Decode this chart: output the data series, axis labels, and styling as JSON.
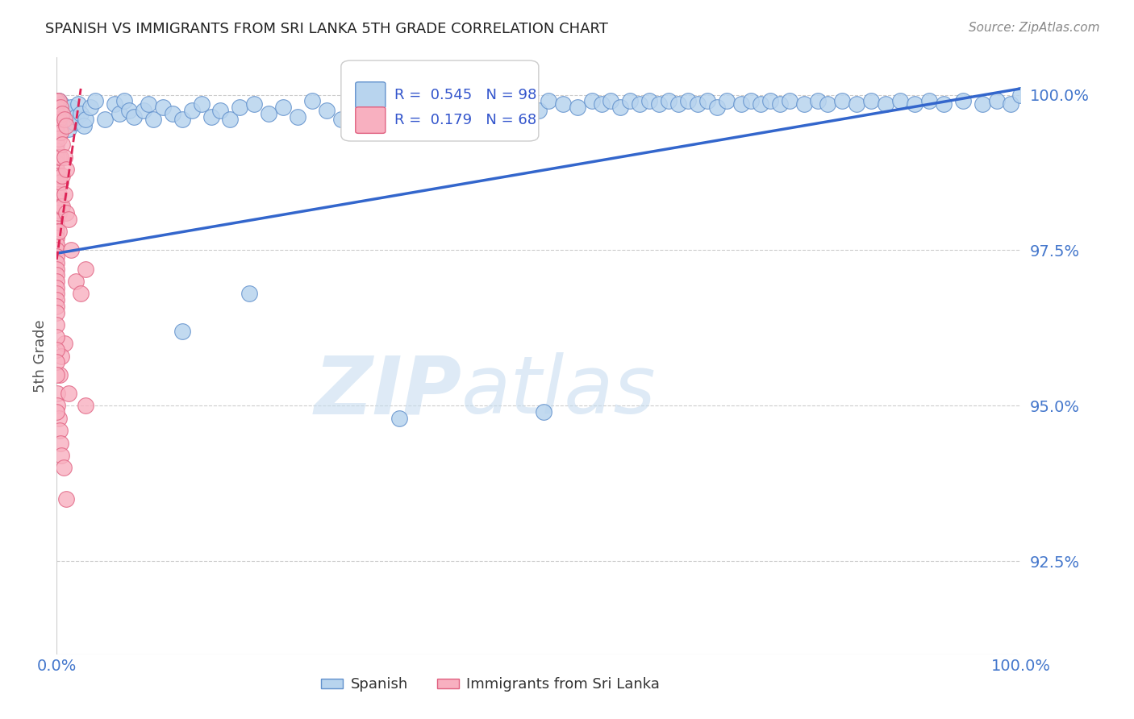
{
  "title": "SPANISH VS IMMIGRANTS FROM SRI LANKA 5TH GRADE CORRELATION CHART",
  "source_text": "Source: ZipAtlas.com",
  "ylabel": "5th Grade",
  "xmin": 0.0,
  "xmax": 1.0,
  "ymin": 0.91,
  "ymax": 1.006,
  "yticks": [
    0.925,
    0.95,
    0.975,
    1.0
  ],
  "ytick_labels": [
    "92.5%",
    "95.0%",
    "97.5%",
    "100.0%"
  ],
  "blue_R": 0.545,
  "blue_N": 98,
  "pink_R": 0.179,
  "pink_N": 68,
  "blue_color": "#b8d4ee",
  "blue_edge": "#6090cc",
  "pink_color": "#f8b0c0",
  "pink_edge": "#e06080",
  "trend_blue_color": "#3366cc",
  "trend_pink_color": "#dd2255",
  "watermark_zip": "ZIP",
  "watermark_atlas": "atlas",
  "legend_blue_label": "Spanish",
  "legend_pink_label": "Immigrants from Sri Lanka",
  "blue_trend_x0": 0.0,
  "blue_trend_y0": 0.9745,
  "blue_trend_x1": 1.0,
  "blue_trend_y1": 1.001,
  "pink_trend_x0": 0.0,
  "pink_trend_y0": 0.9735,
  "pink_trend_x1": 0.025,
  "pink_trend_y1": 1.001
}
